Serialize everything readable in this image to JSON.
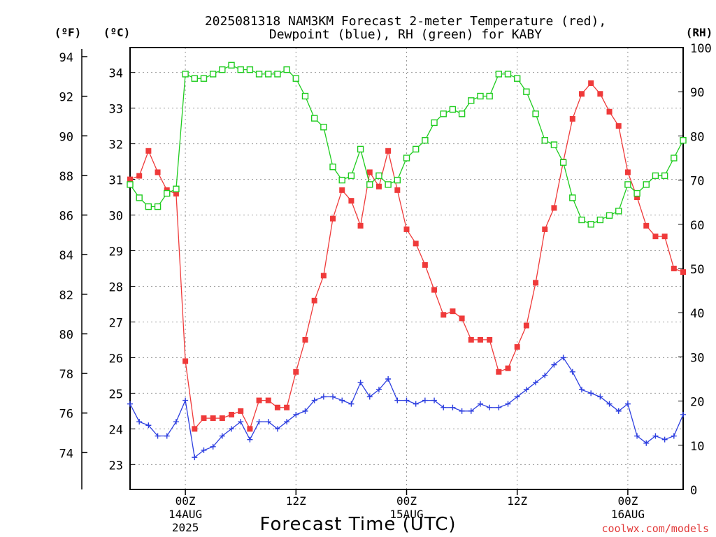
{
  "chart_data": {
    "type": "line",
    "title_line1": "2025081318 NAM3KM Forecast 2-meter Temperature (red),",
    "title_line2": "Dewpoint (blue), RH (green) for KABY",
    "xlabel": "Forecast Time (UTC)",
    "left_unit_f": "(ºF)",
    "left_unit_c": "(ºC)",
    "right_unit": "(RH)",
    "credit": "coolwx.com/models",
    "x_range_hours": [
      -6,
      54
    ],
    "yc_range": [
      22.3,
      34.7
    ],
    "rh_range": [
      0,
      100
    ],
    "f_ticks": [
      74,
      76,
      78,
      80,
      82,
      84,
      86,
      88,
      90,
      92,
      94
    ],
    "c_ticks": [
      23,
      24,
      25,
      26,
      27,
      28,
      29,
      30,
      31,
      32,
      33,
      34
    ],
    "rh_ticks": [
      0,
      10,
      20,
      30,
      40,
      50,
      60,
      70,
      80,
      90,
      100
    ],
    "x_ticks": [
      {
        "hour": 0,
        "lines": [
          "00Z",
          "14AUG",
          "2025"
        ]
      },
      {
        "hour": 12,
        "lines": [
          "12Z"
        ]
      },
      {
        "hour": 24,
        "lines": [
          "00Z",
          "15AUG"
        ]
      },
      {
        "hour": 36,
        "lines": [
          "12Z"
        ]
      },
      {
        "hour": 48,
        "lines": [
          "00Z",
          "16AUG"
        ]
      }
    ],
    "grid": true,
    "hours": [
      -6,
      -5,
      -4,
      -3,
      -2,
      -1,
      0,
      1,
      2,
      3,
      4,
      5,
      6,
      7,
      8,
      9,
      10,
      11,
      12,
      13,
      14,
      15,
      16,
      17,
      18,
      19,
      20,
      21,
      22,
      23,
      24,
      25,
      26,
      27,
      28,
      29,
      30,
      31,
      32,
      33,
      34,
      35,
      36,
      37,
      38,
      39,
      40,
      41,
      42,
      43,
      44,
      45,
      46,
      47,
      48,
      49,
      50,
      51,
      52,
      53,
      54
    ],
    "series": [
      {
        "name": "Temperature",
        "unit": "C",
        "color": "#ef3a3a",
        "marker": "filled-square",
        "values": [
          31.0,
          31.1,
          31.8,
          31.2,
          30.7,
          30.6,
          25.9,
          24.0,
          24.3,
          24.3,
          24.3,
          24.4,
          24.5,
          24.0,
          24.8,
          24.8,
          24.6,
          24.6,
          25.6,
          26.5,
          27.6,
          28.3,
          29.9,
          30.7,
          30.4,
          29.7,
          31.2,
          30.8,
          31.8,
          30.7,
          29.6,
          29.2,
          28.6,
          27.9,
          27.2,
          27.3,
          27.1,
          26.5,
          26.5,
          26.5,
          25.6,
          25.7,
          26.3,
          26.9,
          28.1,
          29.6,
          30.2,
          31.5,
          32.7,
          33.4,
          33.7,
          33.4,
          32.9,
          32.5,
          31.2,
          30.5,
          29.7,
          29.4,
          29.4,
          28.5,
          28.4
        ]
      },
      {
        "name": "Dewpoint",
        "unit": "C",
        "color": "#2d3fe0",
        "marker": "plus",
        "values": [
          24.7,
          24.2,
          24.1,
          23.8,
          23.8,
          24.2,
          24.8,
          23.2,
          23.4,
          23.5,
          23.8,
          24.0,
          24.2,
          23.7,
          24.2,
          24.2,
          24.0,
          24.2,
          24.4,
          24.5,
          24.8,
          24.9,
          24.9,
          24.8,
          24.7,
          25.3,
          24.9,
          25.1,
          25.4,
          24.8,
          24.8,
          24.7,
          24.8,
          24.8,
          24.6,
          24.6,
          24.5,
          24.5,
          24.7,
          24.6,
          24.6,
          24.7,
          24.9,
          25.1,
          25.3,
          25.5,
          25.8,
          26.0,
          25.6,
          25.1,
          25.0,
          24.9,
          24.7,
          24.5,
          24.7,
          23.8,
          23.6,
          23.8,
          23.7,
          23.8,
          24.4
        ]
      },
      {
        "name": "RH",
        "unit": "%",
        "color": "#1fcc1f",
        "marker": "open-square",
        "values": [
          69,
          66,
          64,
          64,
          67,
          68,
          94,
          93,
          93,
          94,
          95,
          96,
          95,
          95,
          94,
          94,
          94,
          95,
          93,
          89,
          84,
          82,
          73,
          70,
          71,
          77,
          69,
          71,
          69,
          70,
          75,
          77,
          79,
          83,
          85,
          86,
          85,
          88,
          89,
          89,
          94,
          94,
          93,
          90,
          85,
          79,
          78,
          74,
          66,
          61,
          60,
          61,
          62,
          63,
          69,
          67,
          69,
          71,
          71,
          75,
          79
        ]
      }
    ]
  }
}
